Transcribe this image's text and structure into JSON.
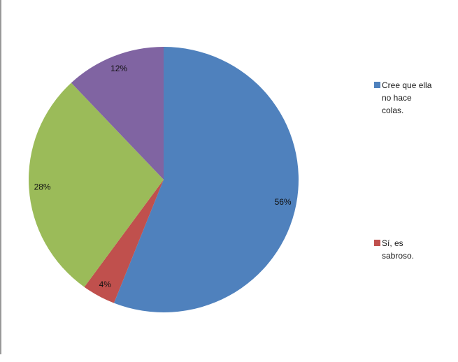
{
  "chart_data": {
    "type": "pie",
    "title": "",
    "start_angle_deg": 0,
    "direction": "clockwise",
    "unit": "%",
    "categories": [
      "Cree que ella no hace colas.",
      "Sí, es sabroso.",
      "",
      ""
    ],
    "values": [
      56,
      4,
      28,
      12
    ],
    "slices": [
      {
        "label": "Cree que ella no hace colas.",
        "value": 56,
        "data_label": "56%",
        "color": "#4F81BD"
      },
      {
        "label": "Sí, es sabroso.",
        "value": 4,
        "data_label": "4%",
        "color": "#C0504D"
      },
      {
        "label": "",
        "value": 28,
        "data_label": "28%",
        "color": "#9BBB59"
      },
      {
        "label": "",
        "value": 12,
        "data_label": "12%",
        "color": "#8064A2"
      }
    ],
    "legend": {
      "position": "right",
      "entries": [
        {
          "label": "Cree que ella no hace colas.",
          "lines": [
            "Cree que ella",
            "no hace",
            "colas."
          ],
          "color": "#4F81BD"
        },
        {
          "label": "Sí, es sabroso.",
          "lines": [
            "Sí, es",
            "sabroso."
          ],
          "color": "#C0504D"
        }
      ]
    }
  },
  "colors": {
    "edge_line": "#999999",
    "label_text": "#111111",
    "legend_text": "#1a1a1a",
    "background": "#ffffff"
  }
}
